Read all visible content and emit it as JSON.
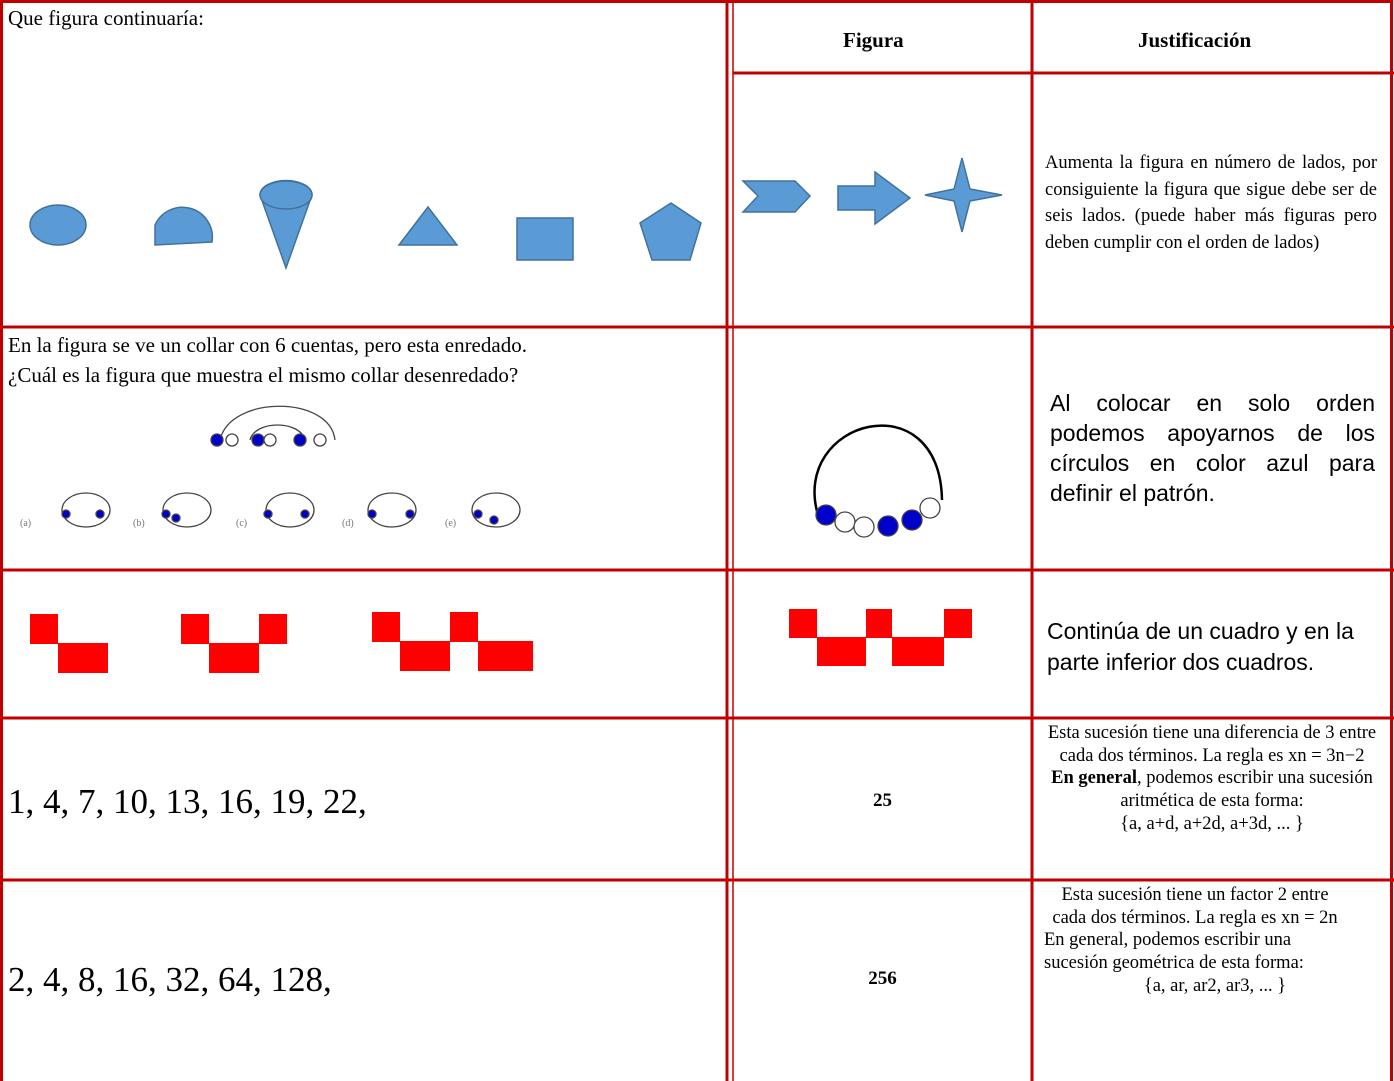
{
  "header": {
    "figura": "Figura",
    "justificacion": "Justificación"
  },
  "rows": [
    {
      "prompt": "Que figura continuaría:",
      "justification": "Aumenta la figura en número de lados, por consiguiente la figura que sigue debe ser de seis lados. (puede haber más figuras pero deben cumplir con el orden de lados)"
    },
    {
      "prompt": [
        "En la figura se ve un collar con 6 cuentas, pero esta enredado.",
        "¿Cuál es la figura que muestra el mismo collar desenredado?"
      ],
      "options": [
        "(a)",
        "(b)",
        "(c)",
        "(d)",
        "(e)"
      ],
      "justification": "Al colocar en solo orden podemos apoyarnos de los círculos en color azul para definir el patrón."
    },
    {
      "justification": "Continúa de un cuadro y en la parte inferior dos cuadros."
    },
    {
      "sequence": "1, 4, 7, 10, 13, 16, 19, 22,",
      "answer": "25",
      "justification": [
        "Esta sucesión tiene una diferencia de 3 entre cada dos términos. La regla es xn = 3n−2",
        "En general",
        ", podemos escribir una sucesión aritmética de esta forma:",
        "{a, a+d, a+2d, a+3d, ... }"
      ]
    },
    {
      "sequence": "2, 4, 8, 16, 32, 64, 128,",
      "answer": "256",
      "justification": [
        "Esta sucesión tiene un factor 2 entre cada dos términos. La regla es xn = 2n",
        "En general, podemos escribir una sucesión geométrica de esta forma:",
        "{a, ar, ar2, ar3, ... }"
      ]
    }
  ]
}
